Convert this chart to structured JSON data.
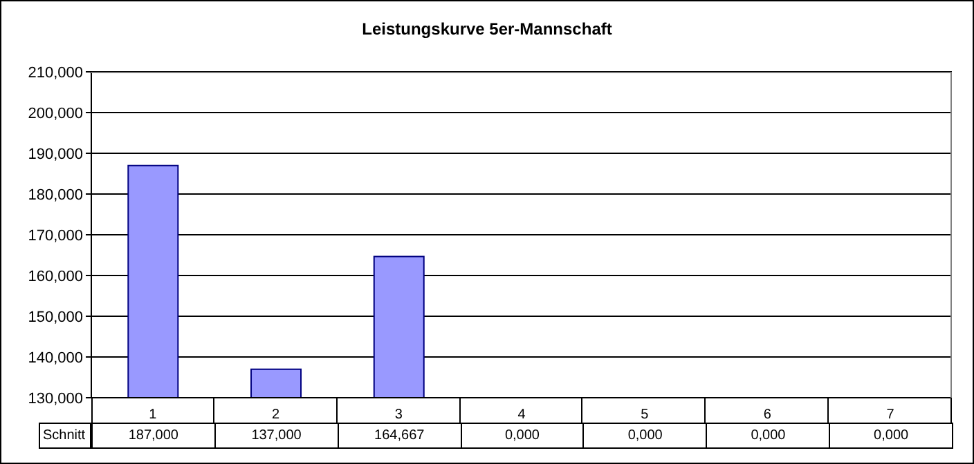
{
  "chart_data": {
    "type": "bar",
    "title": "Leistungskurve 5er-Mannschaft",
    "categories": [
      "1",
      "2",
      "3",
      "4",
      "5",
      "6",
      "7"
    ],
    "series": [
      {
        "name": "Schnitt",
        "color": "#9999ff",
        "values": [
          187,
          137,
          164.667,
          null,
          null,
          null,
          null
        ],
        "value_labels": [
          "187,000",
          "137,000",
          "164,667",
          "0,000",
          "0,000",
          "0,000",
          "0,000"
        ]
      }
    ],
    "ylim": [
      130,
      210
    ],
    "yticks": [
      {
        "value": 130,
        "label": "130,000"
      },
      {
        "value": 140,
        "label": "140,000"
      },
      {
        "value": 150,
        "label": "150,000"
      },
      {
        "value": 160,
        "label": "160,000"
      },
      {
        "value": 170,
        "label": "170,000"
      },
      {
        "value": 180,
        "label": "180,000"
      },
      {
        "value": 190,
        "label": "190,000"
      },
      {
        "value": 200,
        "label": "200,000"
      },
      {
        "value": 210,
        "label": "210,000"
      }
    ],
    "grid": "y"
  }
}
